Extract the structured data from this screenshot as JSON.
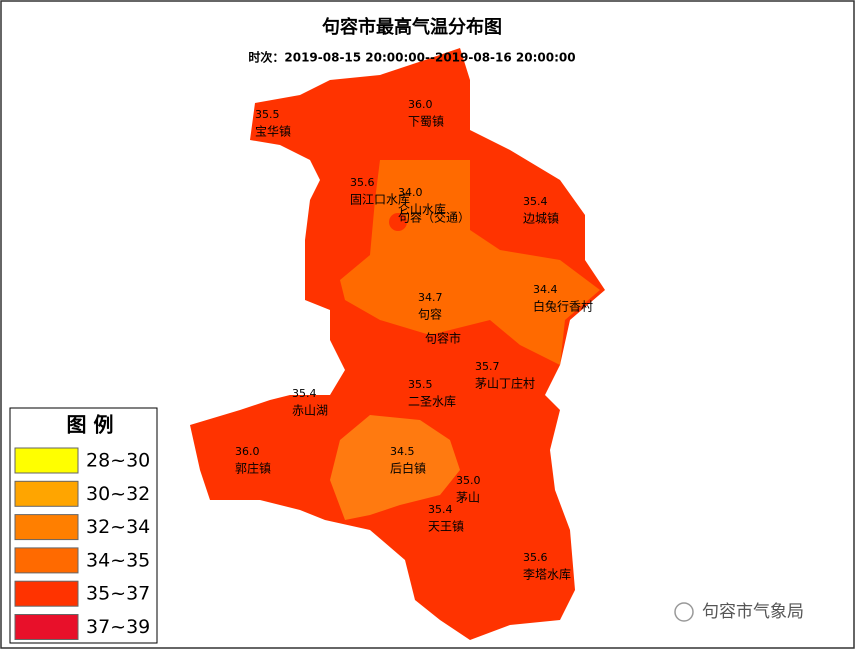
{
  "title": "句容市最高气温分布图",
  "subtitle": "时次：2019-08-15 20:00:00--2019-08-16 20:00:00",
  "city_label": "句容市",
  "stations": [
    {
      "value": "35.5",
      "name": "宝华镇"
    },
    {
      "value": "36.0",
      "name": "下蜀镇"
    },
    {
      "value": "35.6",
      "name": "固江口水库"
    },
    {
      "value": "34.0",
      "name": "仑山水库"
    },
    {
      "value": null,
      "name": "句容（交通）"
    },
    {
      "value": "35.4",
      "name": "边城镇"
    },
    {
      "value": "34.4",
      "name": "白兔行香村"
    },
    {
      "value": "34.7",
      "name": "句容"
    },
    {
      "value": "35.7",
      "name": "茅山丁庄村"
    },
    {
      "value": "35.5",
      "name": "二圣水库"
    },
    {
      "value": "35.4",
      "name": "赤山湖"
    },
    {
      "value": "36.0",
      "name": "郭庄镇"
    },
    {
      "value": "34.5",
      "name": "后白镇"
    },
    {
      "value": "35.0",
      "name": "茅山"
    },
    {
      "value": "35.4",
      "name": "天王镇"
    },
    {
      "value": "35.6",
      "name": "李塔水库"
    }
  ],
  "legend": {
    "title": "图 例",
    "items": [
      {
        "label": "28~30",
        "color": "#ffff00"
      },
      {
        "label": "30~32",
        "color": "#ffa500"
      },
      {
        "label": "32~34",
        "color": "#ff7f00"
      },
      {
        "label": "34~35",
        "color": "#ff6a00"
      },
      {
        "label": "35~37",
        "color": "#ff3300"
      },
      {
        "label": "37~39",
        "color": "#e8102a"
      }
    ]
  },
  "watermark": "句容市气象局"
}
